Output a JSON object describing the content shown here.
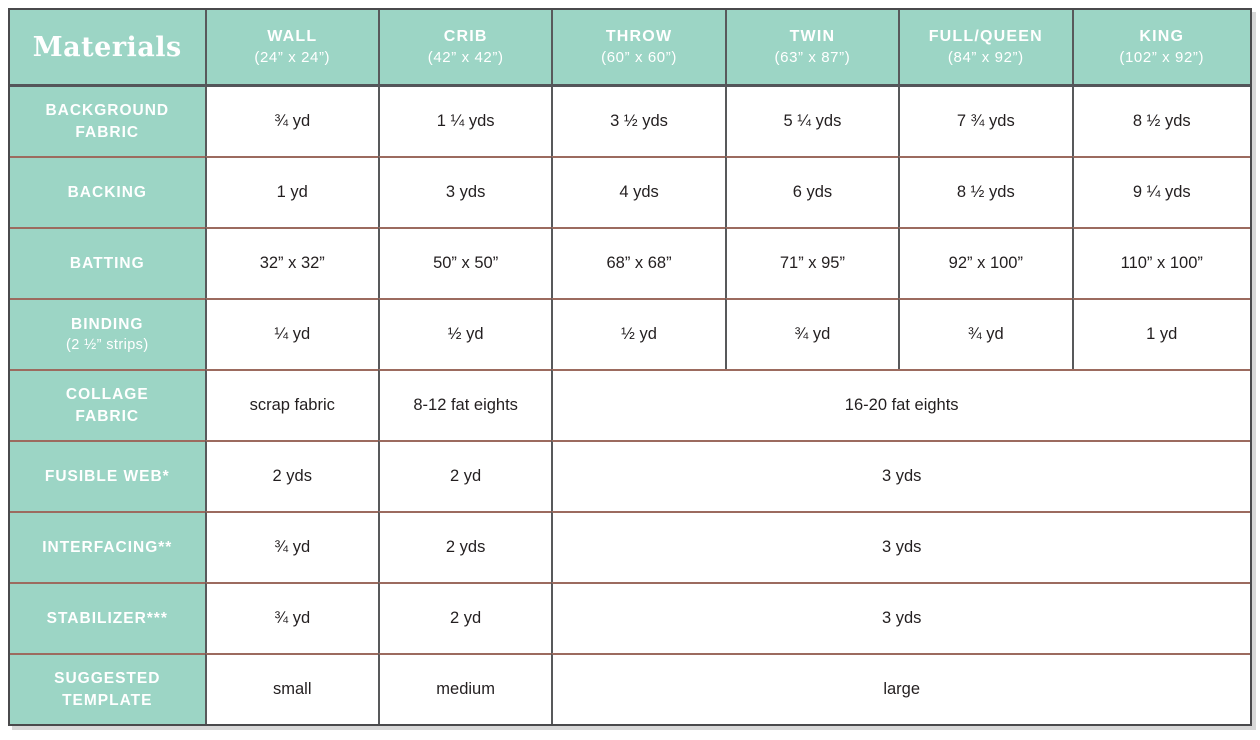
{
  "colors": {
    "accent_teal": "#9cd5c5",
    "grid_horizontal": "#9c6b5f",
    "grid_vertical": "#58595b",
    "outer_border": "#4a4a4c",
    "header_text": "#ffffff",
    "cell_text": "#231f20"
  },
  "header": {
    "title": "Materials"
  },
  "columns": [
    {
      "name": "WALL",
      "size": "(24” x 24”)"
    },
    {
      "name": "CRIB",
      "size": "(42” x 42”)"
    },
    {
      "name": "THROW",
      "size": "(60” x 60”)"
    },
    {
      "name": "TWIN",
      "size": "(63” x 87”)"
    },
    {
      "name": "FULL/QUEEN",
      "size": "(84” x 92”)"
    },
    {
      "name": "KING",
      "size": "(102” x 92”)"
    }
  ],
  "rows": [
    {
      "label": "BACKGROUND\nFABRIC",
      "cells": [
        "¾ yd",
        "1 ¼ yds",
        "3 ½ yds",
        "5 ¼ yds",
        "7 ¾ yds",
        "8 ½ yds"
      ]
    },
    {
      "label": "BACKING",
      "cells": [
        "1 yd",
        "3 yds",
        "4 yds",
        "6 yds",
        "8 ½ yds",
        "9 ¼ yds"
      ]
    },
    {
      "label": "BATTING",
      "cells": [
        "32” x 32”",
        "50” x 50”",
        "68” x 68”",
        "71” x 95”",
        "92” x 100”",
        "110” x 100”"
      ]
    },
    {
      "label": "BINDING",
      "sublabel": "(2 ½” strips)",
      "cells": [
        "¼ yd",
        "½ yd",
        "½ yd",
        "¾ yd",
        "¾ yd",
        "1 yd"
      ]
    },
    {
      "label": "COLLAGE\nFABRIC",
      "cells": [
        "scrap fabric",
        "8-12 fat eights",
        "16-20 fat eights"
      ]
    },
    {
      "label": "FUSIBLE WEB*",
      "cells": [
        "2 yds",
        "2 yd",
        "3 yds"
      ]
    },
    {
      "label": "INTERFACING**",
      "cells": [
        "¾ yd",
        "2 yds",
        "3 yds"
      ]
    },
    {
      "label": "STABILIZER***",
      "cells": [
        "¾ yd",
        "2 yd",
        "3 yds"
      ]
    },
    {
      "label": "SUGGESTED\nTEMPLATE",
      "cells": [
        "small",
        "medium",
        "large"
      ]
    }
  ]
}
